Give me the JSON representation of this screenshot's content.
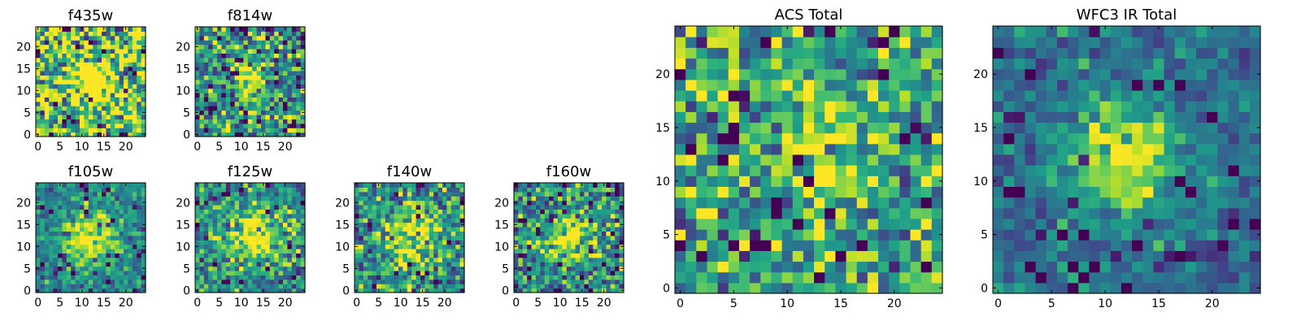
{
  "chart_data": [
    {
      "type": "heatmap",
      "title": "f435w",
      "grid": false,
      "xlim": [
        0,
        24
      ],
      "ylim": [
        0,
        24
      ],
      "xticks": [
        "0",
        "5",
        "10",
        "15",
        "20"
      ],
      "yticks": [
        "0",
        "5",
        "10",
        "15",
        "20"
      ],
      "colormap": "viridis",
      "peak_pixel": [
        13,
        12
      ],
      "spread": 3.0,
      "peak_level": 0.75,
      "noise_level": 0.35,
      "background_level": 0.7
    },
    {
      "type": "heatmap",
      "title": "f814w",
      "grid": false,
      "xlim": [
        0,
        24
      ],
      "ylim": [
        0,
        24
      ],
      "xticks": [
        "0",
        "5",
        "10",
        "15",
        "20"
      ],
      "yticks": [
        "0",
        "5",
        "10",
        "15",
        "20"
      ],
      "colormap": "viridis",
      "peak_pixel": [
        12,
        13
      ],
      "spread": 3.0,
      "peak_level": 0.55,
      "noise_level": 0.28,
      "background_level": 0.5
    },
    {
      "type": "heatmap",
      "title": "f105w",
      "grid": false,
      "xlim": [
        0,
        24
      ],
      "ylim": [
        0,
        24
      ],
      "xticks": [
        "0",
        "5",
        "10",
        "15",
        "20"
      ],
      "yticks": [
        "0",
        "5",
        "10",
        "15",
        "20"
      ],
      "colormap": "viridis",
      "peak_pixel": [
        12,
        12
      ],
      "spread": 4.5,
      "peak_level": 0.55,
      "noise_level": 0.14,
      "background_level": 0.45
    },
    {
      "type": "heatmap",
      "title": "f125w",
      "grid": false,
      "xlim": [
        0,
        24
      ],
      "ylim": [
        0,
        24
      ],
      "xticks": [
        "0",
        "5",
        "10",
        "15",
        "20"
      ],
      "yticks": [
        "0",
        "5",
        "10",
        "15",
        "20"
      ],
      "colormap": "viridis",
      "peak_pixel": [
        13,
        12
      ],
      "spread": 4.5,
      "peak_level": 0.5,
      "noise_level": 0.2,
      "background_level": 0.48
    },
    {
      "type": "heatmap",
      "title": "f140w",
      "grid": false,
      "xlim": [
        0,
        24
      ],
      "ylim": [
        0,
        24
      ],
      "xticks": [
        "0",
        "5",
        "10",
        "15",
        "20"
      ],
      "yticks": [
        "0",
        "5",
        "10",
        "15",
        "20"
      ],
      "colormap": "viridis",
      "peak_pixel": [
        13,
        12
      ],
      "spread": 4.5,
      "peak_level": 0.45,
      "noise_level": 0.24,
      "background_level": 0.5
    },
    {
      "type": "heatmap",
      "title": "f160w",
      "grid": false,
      "xlim": [
        0,
        24
      ],
      "ylim": [
        0,
        24
      ],
      "xticks": [
        "0",
        "5",
        "10",
        "15",
        "20"
      ],
      "yticks": [
        "0",
        "5",
        "10",
        "15",
        "20"
      ],
      "colormap": "viridis",
      "peak_pixel": [
        13,
        12
      ],
      "spread": 4.0,
      "peak_level": 0.5,
      "noise_level": 0.24,
      "background_level": 0.48
    },
    {
      "type": "heatmap",
      "title": "ACS Total",
      "grid": false,
      "xlim": [
        0,
        24
      ],
      "ylim": [
        0,
        24
      ],
      "xticks": [
        "0",
        "5",
        "10",
        "15",
        "20"
      ],
      "yticks": [
        "0",
        "5",
        "10",
        "15",
        "20"
      ],
      "colormap": "viridis",
      "peak_pixel": [
        12,
        13
      ],
      "spread": 2.6,
      "peak_level": 0.45,
      "noise_level": 0.26,
      "background_level": 0.58
    },
    {
      "type": "heatmap",
      "title": "WFC3 IR Total",
      "grid": false,
      "xlim": [
        0,
        24
      ],
      "ylim": [
        0,
        24
      ],
      "xticks": [
        "0",
        "5",
        "10",
        "15",
        "20"
      ],
      "yticks": [
        "0",
        "5",
        "10",
        "15",
        "20"
      ],
      "colormap": "viridis",
      "peak_pixel": [
        12,
        12
      ],
      "spread": 3.4,
      "peak_level": 0.68,
      "noise_level": 0.12,
      "background_level": 0.36
    }
  ]
}
